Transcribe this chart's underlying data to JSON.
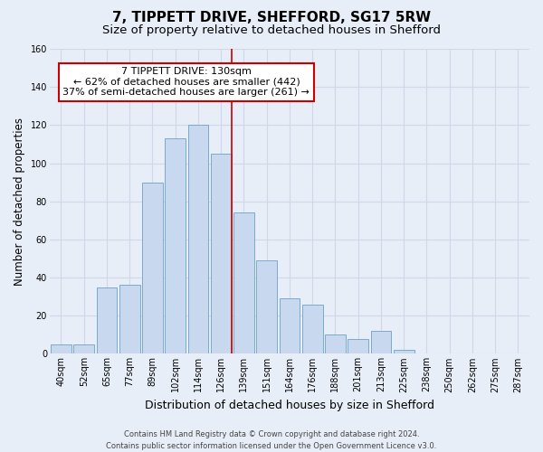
{
  "title": "7, TIPPETT DRIVE, SHEFFORD, SG17 5RW",
  "subtitle": "Size of property relative to detached houses in Shefford",
  "xlabel": "Distribution of detached houses by size in Shefford",
  "ylabel": "Number of detached properties",
  "bar_labels": [
    "40sqm",
    "52sqm",
    "65sqm",
    "77sqm",
    "89sqm",
    "102sqm",
    "114sqm",
    "126sqm",
    "139sqm",
    "151sqm",
    "164sqm",
    "176sqm",
    "188sqm",
    "201sqm",
    "213sqm",
    "225sqm",
    "238sqm",
    "250sqm",
    "262sqm",
    "275sqm",
    "287sqm"
  ],
  "bar_values": [
    5,
    5,
    35,
    36,
    90,
    113,
    120,
    105,
    74,
    49,
    29,
    26,
    10,
    8,
    12,
    2,
    0,
    0,
    0,
    0,
    0
  ],
  "bar_color": "#c8d8ee",
  "bar_edge_color": "#7aaacf",
  "vline_index": 7,
  "vline_color": "#cc0000",
  "ylim": [
    0,
    160
  ],
  "yticks": [
    0,
    20,
    40,
    60,
    80,
    100,
    120,
    140,
    160
  ],
  "annotation_title": "7 TIPPETT DRIVE: 130sqm",
  "annotation_line1": "← 62% of detached houses are smaller (442)",
  "annotation_line2": "37% of semi-detached houses are larger (261) →",
  "annotation_box_facecolor": "#ffffff",
  "annotation_border_color": "#cc0000",
  "footer_line1": "Contains HM Land Registry data © Crown copyright and database right 2024.",
  "footer_line2": "Contains public sector information licensed under the Open Government Licence v3.0.",
  "background_color": "#e8eef8",
  "grid_color": "#d0d8e8",
  "title_fontsize": 11,
  "subtitle_fontsize": 9.5,
  "ylabel_fontsize": 8.5,
  "xlabel_fontsize": 9,
  "tick_fontsize": 7,
  "footer_fontsize": 6
}
